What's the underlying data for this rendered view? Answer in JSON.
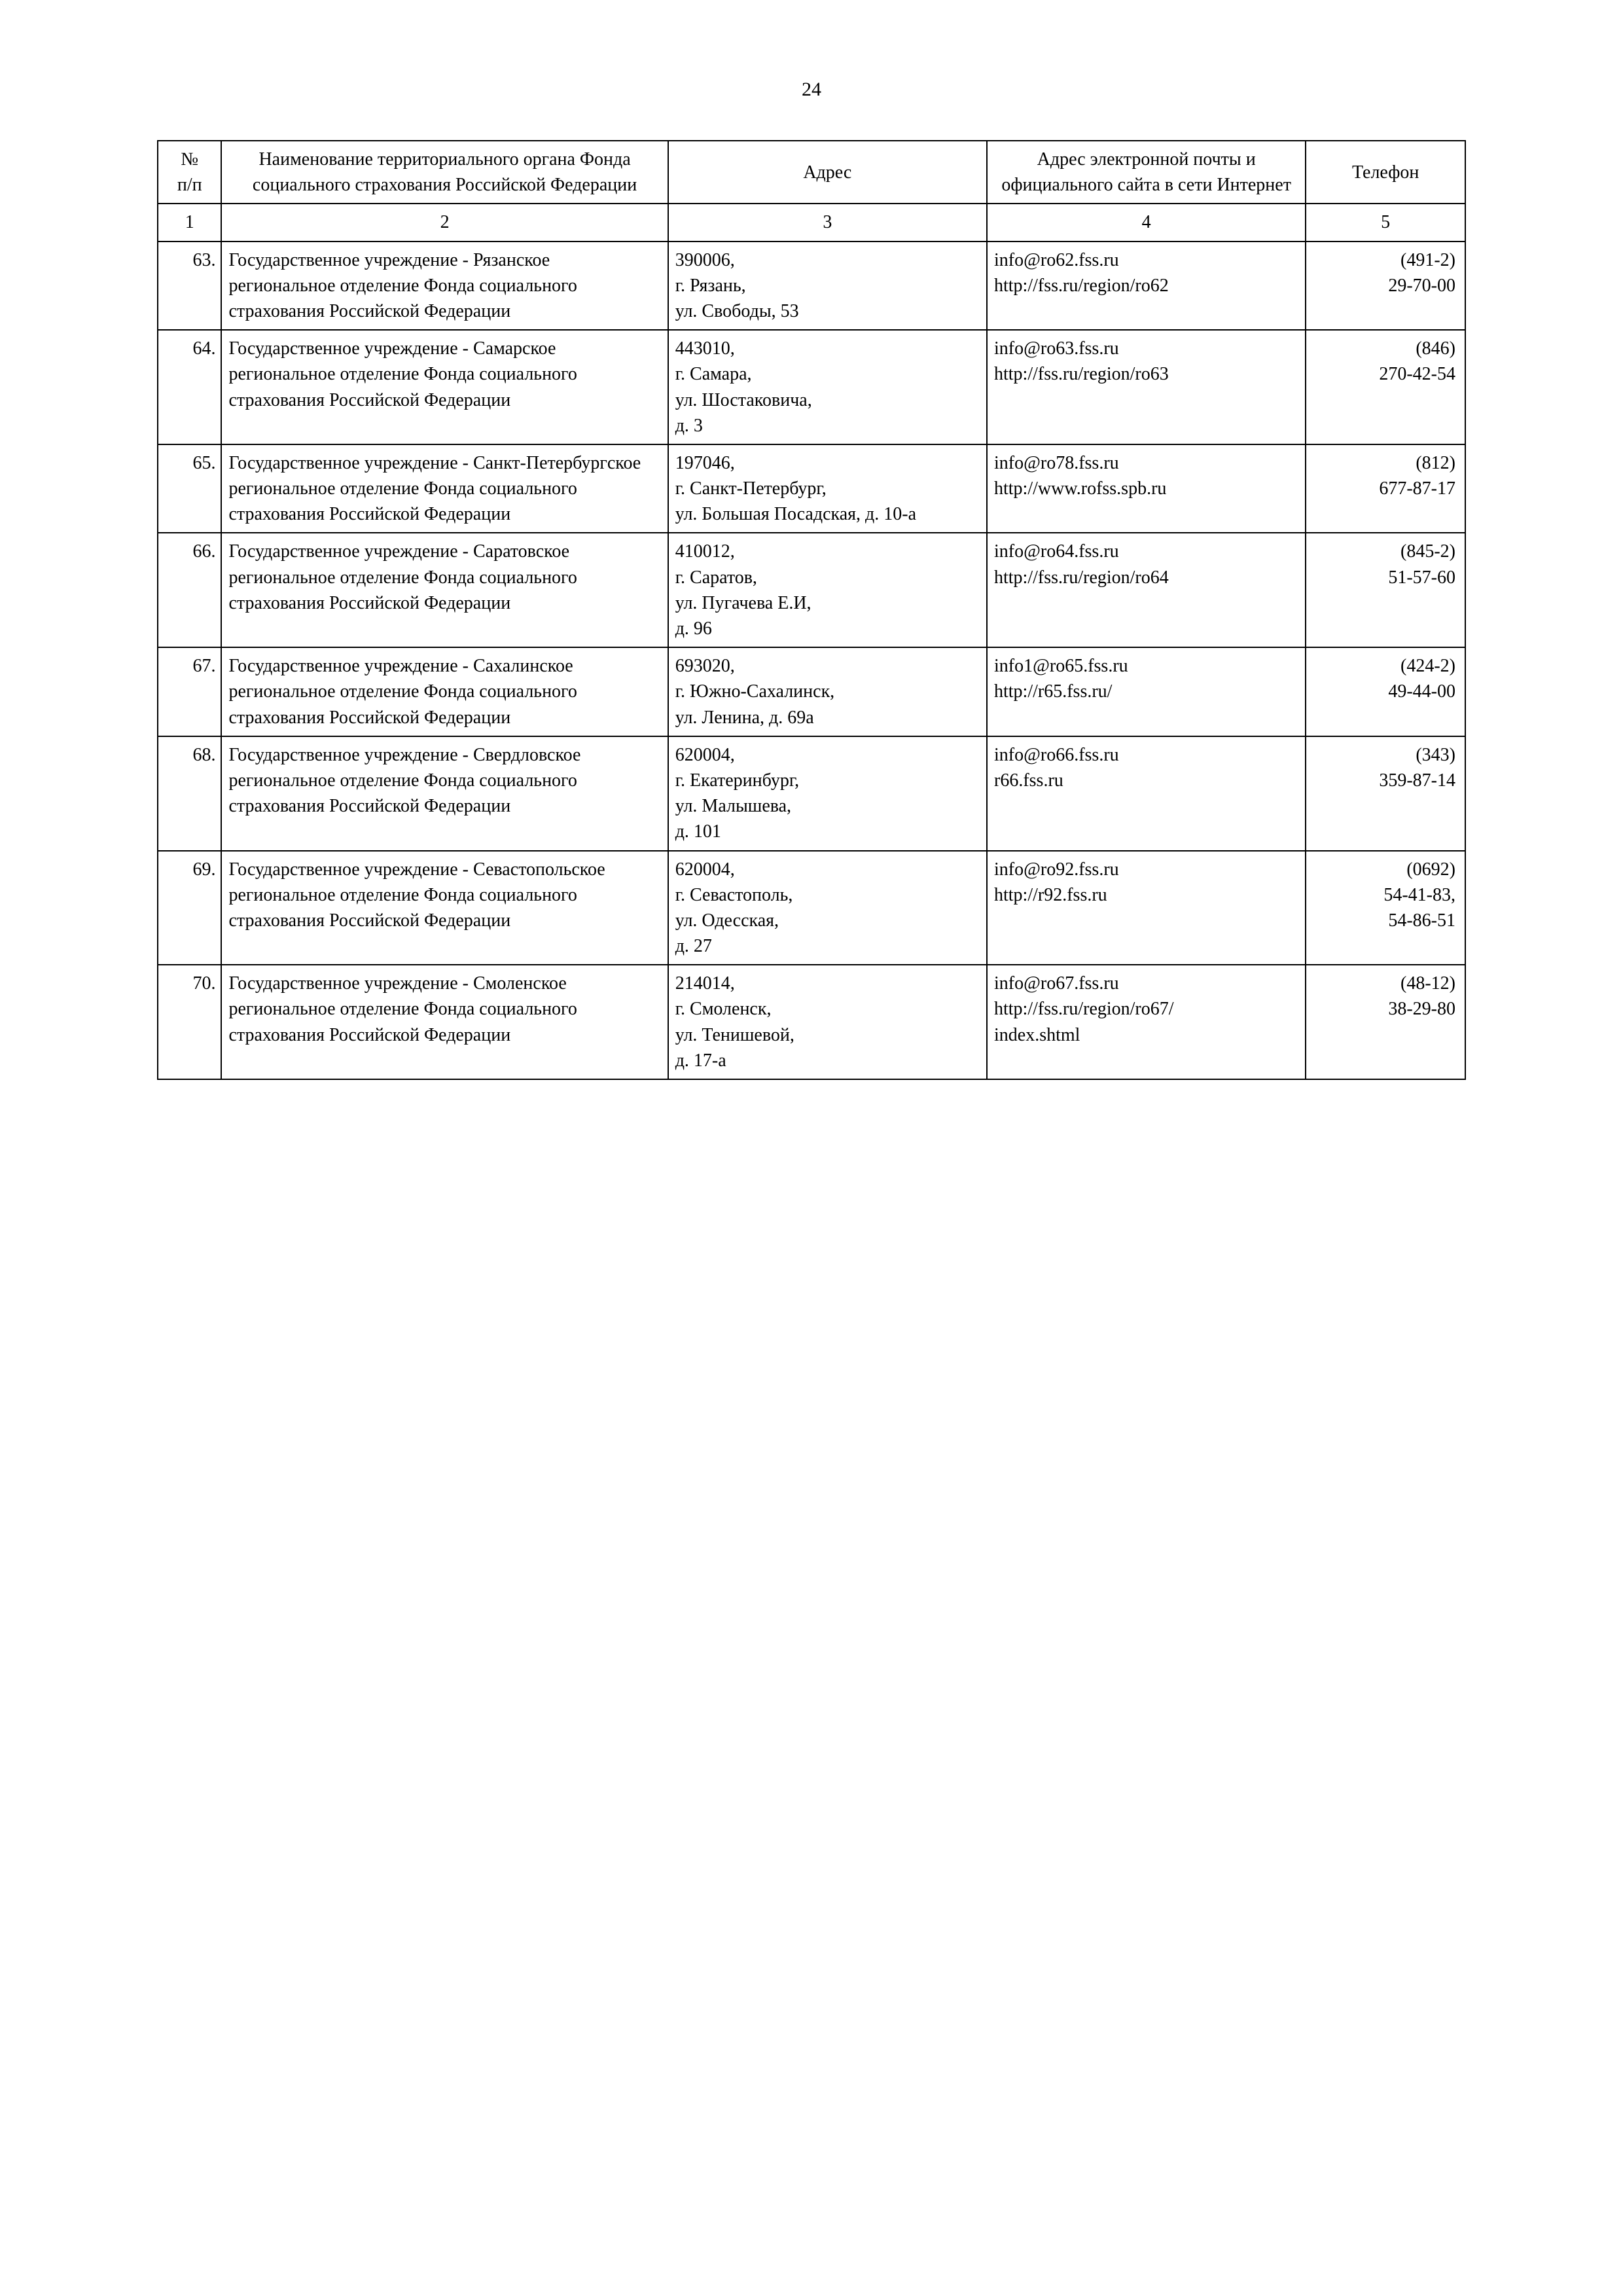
{
  "page_number": "24",
  "headers": {
    "col1": "№\nп/п",
    "col2": "Наименование территориального органа Фонда социального страхования Российской Федерации",
    "col3": "Адрес",
    "col4": "Адрес электронной почты и официального сайта в сети Интернет",
    "col5": "Телефон"
  },
  "subheaders": {
    "c1": "1",
    "c2": "2",
    "c3": "3",
    "c4": "4",
    "c5": "5"
  },
  "rows": [
    {
      "num": "63.",
      "name": "Государственное учреждение - Рязанское региональное отделение Фонда социального страхования Российской Федерации",
      "addr": "390006,\nг. Рязань,\nул. Свободы, 53",
      "email": "info@ro62.fss.ru\nhttp://fss.ru/region/ro62",
      "phone": "(491-2)\n29-70-00"
    },
    {
      "num": "64.",
      "name": "Государственное учреждение - Самарское региональное отделение Фонда социального страхования Российской Федерации",
      "addr": "443010,\nг. Самара,\nул. Шостаковича,\nд. 3",
      "email": "info@ro63.fss.ru\nhttp://fss.ru/region/ro63",
      "phone": "(846)\n270-42-54"
    },
    {
      "num": "65.",
      "name": "Государственное учреждение - Санкт-Петербургское региональное отделение Фонда социального страхования Российской Федерации",
      "addr": "197046,\nг. Санкт-Петербург,\nул. Большая Посадская,  д. 10-а\n ",
      "email": "info@ro78.fss.ru\nhttp://www.rofss.spb.ru",
      "phone": "(812)\n677-87-17"
    },
    {
      "num": "66.",
      "name": "Государственное учреждение - Саратовское региональное отделение Фонда социального страхования Российской Федерации",
      "addr": "410012,\nг. Саратов,\nул. Пугачева Е.И,\nд. 96",
      "email": "info@ro64.fss.ru\nhttp://fss.ru/region/ro64",
      "phone": "(845-2)\n51-57-60"
    },
    {
      "num": "67.",
      "name": "Государственное учреждение - Сахалинское региональное отделение Фонда социального страхования Российской Федерации",
      "addr": "693020,\nг. Южно-Сахалинск,\nул. Ленина, д. 69а",
      "email": "info1@ro65.fss.ru\nhttp://r65.fss.ru/",
      "phone": "(424-2)\n49-44-00"
    },
    {
      "num": "68.",
      "name": "Государственное учреждение - Свердловское региональное отделение Фонда социального страхования Российской Федерации",
      "addr": "620004,\nг. Екатеринбург,\nул. Малышева,\nд. 101",
      "email": "info@ro66.fss.ru\nr66.fss.ru",
      "phone": "(343)\n359-87-14"
    },
    {
      "num": "69.",
      "name": "Государственное учреждение - Севастопольское региональное отделение Фонда социального страхования Российской Федерации",
      "addr": "620004,\nг. Севастополь,\nул. Одесская,\nд. 27",
      "email": "info@ro92.fss.ru\nhttp://r92.fss.ru",
      "phone": "(0692)\n54-41-83,\n54-86-51"
    },
    {
      "num": "70.",
      "name": "Государственное учреждение - Смоленское региональное отделение Фонда социального страхования Российской Федерации",
      "addr": "214014,\nг. Смоленск,\nул. Тенишевой,\nд. 17-а",
      "email": "info@ro67.fss.ru\nhttp://fss.ru/region/ro67/\nindex.shtml",
      "phone": "(48-12)\n38-29-80"
    }
  ]
}
